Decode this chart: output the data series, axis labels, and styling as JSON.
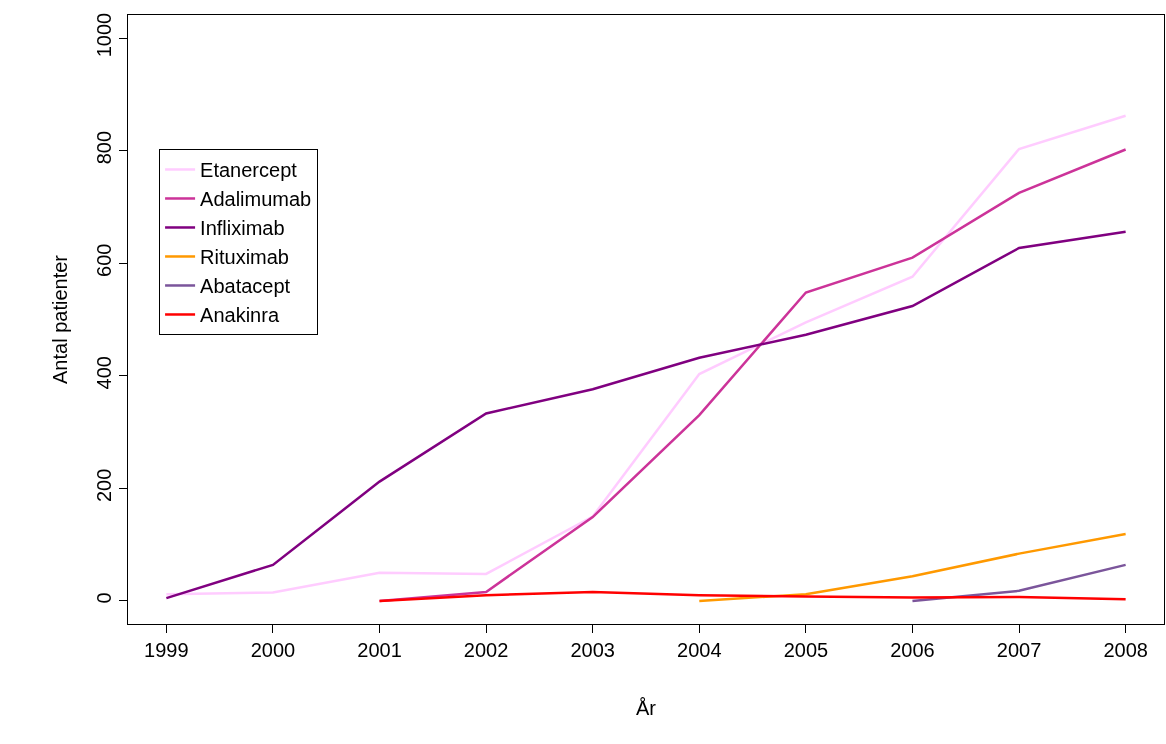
{
  "chart_data": {
    "type": "line",
    "xlabel": "År",
    "ylabel": "Antal patienter",
    "x": [
      1999,
      2000,
      2001,
      2002,
      2003,
      2004,
      2005,
      2006,
      2007,
      2008
    ],
    "xlim": [
      1998.64,
      2008.36
    ],
    "xticks": [
      1999,
      2000,
      2001,
      2002,
      2003,
      2004,
      2005,
      2006,
      2007,
      2008
    ],
    "ylim": [
      -41,
      1041
    ],
    "yticks": [
      0,
      200,
      400,
      600,
      800,
      1000
    ],
    "legend": "top left",
    "marker": "none",
    "line_style": "solid",
    "series": [
      {
        "name": "Etanercept",
        "color": "#ffccff",
        "values": [
          12,
          15,
          50,
          48,
          150,
          403,
          495,
          576,
          803,
          862
        ]
      },
      {
        "name": "Adalimumab",
        "color": "#cc3399",
        "values": [
          null,
          null,
          0,
          16,
          149,
          330,
          548,
          610,
          725,
          802
        ]
      },
      {
        "name": "Infliximab",
        "color": "#800080",
        "values": [
          5,
          64,
          212,
          333,
          376,
          432,
          473,
          524,
          627,
          656
        ]
      },
      {
        "name": "Rituximab",
        "color": "#ff9900",
        "values": [
          null,
          null,
          null,
          null,
          null,
          0,
          12,
          44,
          84,
          119
        ]
      },
      {
        "name": "Abatacept",
        "color": "#7b559b",
        "values": [
          null,
          null,
          null,
          null,
          null,
          null,
          null,
          0,
          18,
          64
        ]
      },
      {
        "name": "Anakinra",
        "color": "#ff0000",
        "values": [
          null,
          null,
          0,
          10,
          16,
          10,
          8,
          6,
          7,
          3
        ]
      }
    ]
  }
}
